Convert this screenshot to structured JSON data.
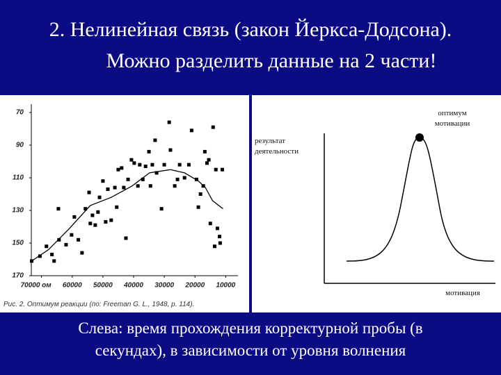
{
  "title": [
    "2. Нелинейная связь (закон Йеркса-Додсона).",
    "Можно разделить данные на 2 части!"
  ],
  "caption": [
    "Слева: время прохождения корректурной пробы (в",
    "секундах), в зависимости от уровня волнения"
  ],
  "chart_data": [
    {
      "type": "scatter",
      "caption": "Рис. 2. Оптимум реакции (по: Freeman G. L., 1948, p. 114).",
      "xlim": [
        74000,
        6000
      ],
      "xticks": [
        {
          "value": 70000,
          "label": "70000 ом"
        },
        60000,
        50000,
        40000,
        30000,
        20000,
        10000
      ],
      "ylim": [
        170,
        70
      ],
      "yticks": [
        70,
        90,
        110,
        130,
        150,
        170
      ],
      "series": [
        {
          "type": "scatter",
          "color": "#000000",
          "x": [
            73200,
            70500,
            68400,
            66600,
            65900,
            64500,
            64300,
            62000,
            60200,
            59300,
            58000,
            56800,
            55700,
            54500,
            54100,
            53400,
            52500,
            51600,
            51100,
            50000,
            49100,
            48400,
            47300,
            46100,
            45500,
            45000,
            43900,
            43200,
            42500,
            41800,
            40700,
            39800,
            38600,
            38000,
            37000,
            36100,
            35000,
            34500,
            33900,
            33000,
            32500,
            30900,
            30000,
            28400,
            28000,
            26600,
            25700,
            25000,
            23400,
            22000,
            21100,
            19500,
            18900,
            18200,
            17300,
            16800,
            16100,
            15500,
            15000,
            14100,
            13600,
            13200,
            12700,
            12000,
            11800,
            11100
          ],
          "values": [
            161,
            158,
            152,
            157,
            161,
            129,
            148,
            151,
            145,
            134,
            148,
            156,
            129,
            119,
            138,
            133,
            139,
            131,
            122,
            112,
            137,
            117,
            136,
            116,
            128,
            105,
            104,
            116,
            147,
            111,
            99,
            101,
            115,
            102,
            111,
            103,
            94,
            115,
            102,
            87,
            107,
            129,
            102,
            76,
            93,
            115,
            111,
            102,
            110,
            102,
            81,
            111,
            128,
            120,
            115,
            94,
            101,
            99,
            138,
            79,
            152,
            105,
            141,
            146,
            150,
            105
          ]
        },
        {
          "type": "line",
          "color": "#000000",
          "x": [
            73200,
            67700,
            60900,
            54100,
            47300,
            40500,
            34800,
            28000,
            23400,
            18900,
            16600,
            14300,
            10900
          ],
          "values": [
            161,
            154,
            141,
            127,
            122,
            115,
            107,
            105,
            107,
            112,
            116,
            124,
            129
          ]
        }
      ]
    }
  ],
  "diagram": {
    "peak_label": [
      "оптимум",
      "мотивации"
    ],
    "y_label": [
      "результат",
      "деятельности"
    ],
    "x_label": "мотивация"
  }
}
